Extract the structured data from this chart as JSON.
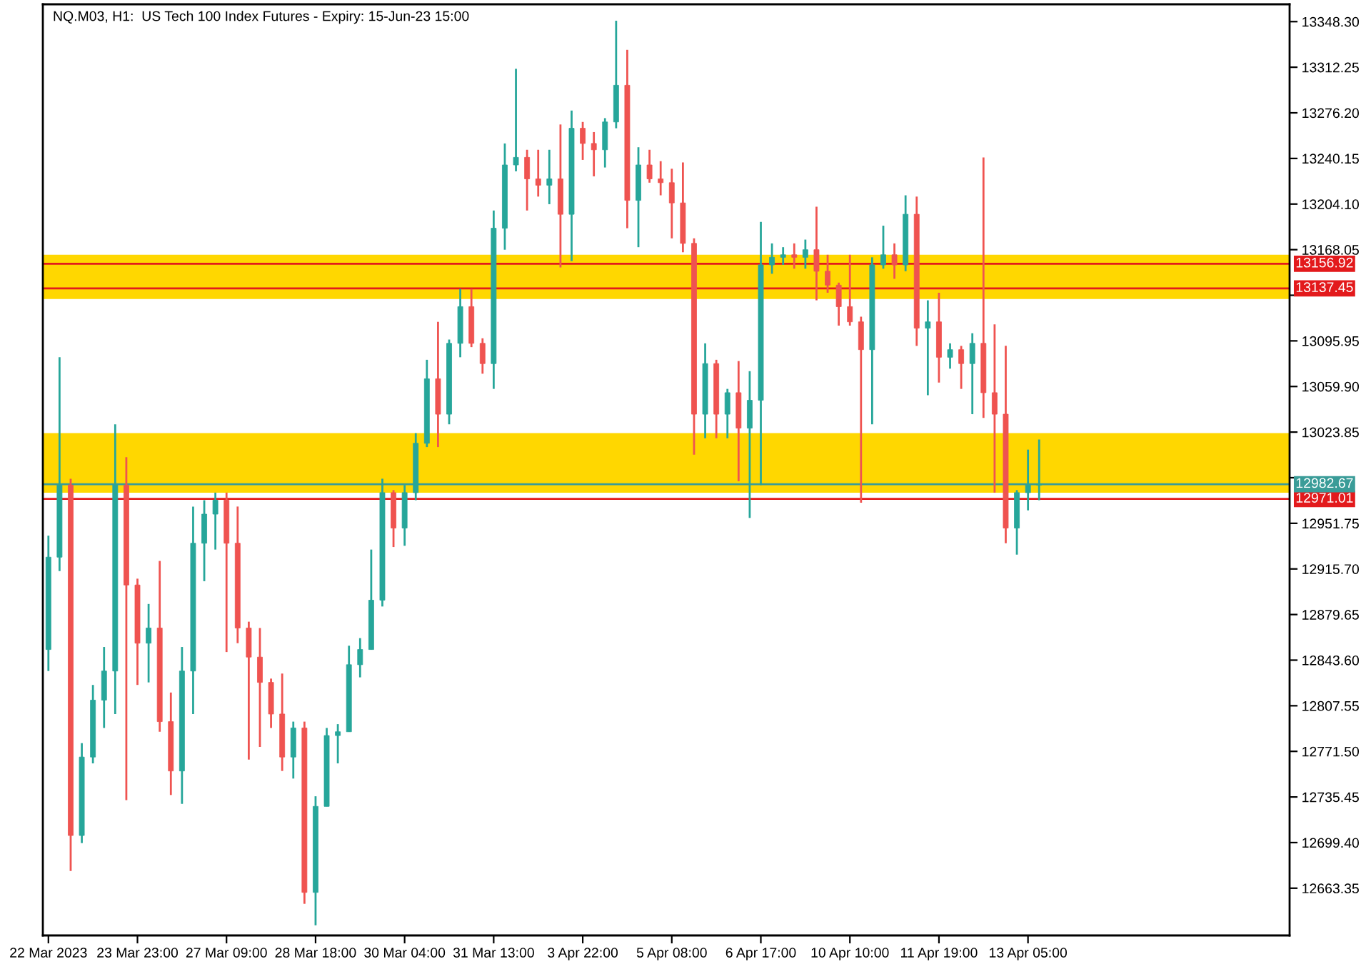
{
  "chart_data": {
    "type": "candlestick",
    "title": "NQ.M03, H1:  US Tech 100 Index Futures - Expiry: 15-Jun-23 15:00",
    "categories": [
      "22 Mar 2023",
      null,
      null,
      null,
      null,
      null,
      null,
      null,
      "23 Mar 23:00",
      null,
      null,
      null,
      null,
      null,
      null,
      null,
      "27 Mar 09:00",
      null,
      null,
      null,
      null,
      null,
      null,
      null,
      "28 Mar 18:00",
      null,
      null,
      null,
      null,
      null,
      null,
      null,
      "30 Mar 04:00",
      null,
      null,
      null,
      null,
      null,
      null,
      null,
      "31 Mar 13:00",
      null,
      null,
      null,
      null,
      null,
      null,
      null,
      "3 Apr 22:00",
      null,
      null,
      null,
      null,
      null,
      null,
      null,
      "5 Apr 08:00",
      null,
      null,
      null,
      null,
      null,
      null,
      null,
      "6 Apr 17:00",
      null,
      null,
      null,
      null,
      null,
      null,
      null,
      "10 Apr 10:00",
      null,
      null,
      null,
      null,
      null,
      null,
      null,
      "11 Apr 19:00",
      null,
      null,
      null,
      null,
      null,
      null,
      null,
      "13 Apr 05:00",
      null,
      null,
      null,
      null,
      null,
      null,
      null,
      null,
      null,
      null,
      null,
      null,
      null,
      null,
      null,
      null,
      null,
      null,
      null,
      null,
      null,
      null,
      null
    ],
    "ohlc": [
      [
        12852,
        12942,
        12835,
        12925
      ],
      [
        12925,
        13083,
        12914,
        12982
      ],
      [
        12982,
        12987,
        12677,
        12705
      ],
      [
        12705,
        12778,
        12699,
        12767
      ],
      [
        12767,
        12824,
        12762,
        12812
      ],
      [
        12812,
        12854,
        12790,
        12835
      ],
      [
        12835,
        13030,
        12801,
        12982
      ],
      [
        12982,
        13004,
        12733,
        12903
      ],
      [
        12903,
        12908,
        12824,
        12857
      ],
      [
        12857,
        12888,
        12826,
        12869
      ],
      [
        12869,
        12922,
        12787,
        12795
      ],
      [
        12795,
        12818,
        12737,
        12756
      ],
      [
        12756,
        12854,
        12730,
        12835
      ],
      [
        12835,
        12965,
        12801,
        12936
      ],
      [
        12936,
        12970,
        12906,
        12959
      ],
      [
        12959,
        12976,
        12931,
        12970
      ],
      [
        12970,
        12976,
        12850,
        12936
      ],
      [
        12936,
        12965,
        12857,
        12869
      ],
      [
        12869,
        12874,
        12765,
        12846
      ],
      [
        12846,
        12869,
        12775,
        12826
      ],
      [
        12826,
        12829,
        12790,
        12801
      ],
      [
        12801,
        12833,
        12756,
        12767
      ],
      [
        12767,
        12795,
        12750,
        12790
      ],
      [
        12790,
        12795,
        12651,
        12660
      ],
      [
        12660,
        12736,
        12634,
        12728
      ],
      [
        12728,
        12790,
        12728,
        12784
      ],
      [
        12784,
        12793,
        12762,
        12787
      ],
      [
        12787,
        12855,
        12787,
        12840
      ],
      [
        12840,
        12861,
        12830,
        12852
      ],
      [
        12852,
        12931,
        12852,
        12891
      ],
      [
        12891,
        12987,
        12886,
        12976
      ],
      [
        12976,
        12978,
        12933,
        12948
      ],
      [
        12948,
        12982,
        12934,
        12976
      ],
      [
        12976,
        13023,
        12970,
        13015
      ],
      [
        13015,
        13081,
        13012,
        13066
      ],
      [
        13066,
        13111,
        13012,
        13038
      ],
      [
        13038,
        13097,
        13030,
        13094
      ],
      [
        13094,
        13137,
        13083,
        13123
      ],
      [
        13123,
        13137,
        13091,
        13094
      ],
      [
        13094,
        13098,
        13070,
        13078
      ],
      [
        13078,
        13199,
        13058,
        13185
      ],
      [
        13185,
        13252,
        13168,
        13235
      ],
      [
        13235,
        13311,
        13230,
        13241
      ],
      [
        13241,
        13247,
        13199,
        13224
      ],
      [
        13224,
        13247,
        13210,
        13219
      ],
      [
        13219,
        13247,
        13204,
        13224
      ],
      [
        13224,
        13267,
        13154,
        13196
      ],
      [
        13196,
        13278,
        13159,
        13264
      ],
      [
        13264,
        13269,
        13239,
        13252
      ],
      [
        13252,
        13261,
        13226,
        13247
      ],
      [
        13247,
        13272,
        13233,
        13269
      ],
      [
        13269,
        13349,
        13264,
        13298
      ],
      [
        13298,
        13326,
        13185,
        13207
      ],
      [
        13207,
        13249,
        13170,
        13235
      ],
      [
        13235,
        13247,
        13221,
        13224
      ],
      [
        13224,
        13238,
        13211,
        13221
      ],
      [
        13221,
        13232,
        13177,
        13205
      ],
      [
        13205,
        13237,
        13166,
        13173
      ],
      [
        13173,
        13177,
        13006,
        13038
      ],
      [
        13038,
        13094,
        13019,
        13078
      ],
      [
        13078,
        13081,
        13019,
        13038
      ],
      [
        13038,
        13058,
        13019,
        13055
      ],
      [
        13055,
        13080,
        12985,
        13027
      ],
      [
        13027,
        13072,
        12956,
        13049
      ],
      [
        13049,
        13190,
        12982,
        13156
      ],
      [
        13156,
        13173,
        13149,
        13162
      ],
      [
        13162,
        13170,
        13156,
        13164
      ],
      [
        13164,
        13173,
        13153,
        13162
      ],
      [
        13162,
        13176,
        13153,
        13168
      ],
      [
        13168,
        13202,
        13128,
        13151
      ],
      [
        13151,
        13164,
        13134,
        13140
      ],
      [
        13140,
        13142,
        13108,
        13123
      ],
      [
        13123,
        13164,
        13108,
        13111
      ],
      [
        13111,
        13115,
        12968,
        13089
      ],
      [
        13089,
        13162,
        13030,
        13156
      ],
      [
        13156,
        13187,
        13153,
        13164
      ],
      [
        13164,
        13173,
        13145,
        13156
      ],
      [
        13156,
        13211,
        13151,
        13196
      ],
      [
        13196,
        13210,
        13092,
        13106
      ],
      [
        13106,
        13128,
        13053,
        13111
      ],
      [
        13111,
        13134,
        13063,
        13083
      ],
      [
        13083,
        13094,
        13074,
        13089
      ],
      [
        13089,
        13092,
        13058,
        13078
      ],
      [
        13078,
        13102,
        13038,
        13094
      ],
      [
        13094,
        13241,
        13035,
        13055
      ],
      [
        13055,
        13109,
        12976,
        13038
      ],
      [
        13038,
        13092,
        12936,
        12948
      ],
      [
        12948,
        12978,
        12927,
        12976
      ],
      [
        12976,
        13010,
        12962,
        12982
      ],
      [
        12982,
        13018,
        12970,
        12982.67
      ],
      null,
      null,
      null,
      null,
      null,
      null,
      null,
      null,
      null,
      null,
      null,
      null,
      null,
      null,
      null,
      null,
      null,
      null,
      null,
      null,
      null,
      null
    ],
    "ylim": [
      12626,
      13362
    ],
    "yticks": [
      {
        "value": 13348.3,
        "label": "13348.30"
      },
      {
        "value": 13312.25,
        "label": "13312.25"
      },
      {
        "value": 13276.2,
        "label": "13276.20"
      },
      {
        "value": 13240.15,
        "label": "13240.15"
      },
      {
        "value": 13204.1,
        "label": "13204.10"
      },
      {
        "value": 13168.05,
        "label": "13168.05"
      },
      {
        "value": 13132.0,
        "label": null
      },
      {
        "value": 13095.95,
        "label": "13095.95"
      },
      {
        "value": 13059.9,
        "label": "13059.90"
      },
      {
        "value": 13023.85,
        "label": "13023.85"
      },
      {
        "value": 12987.8,
        "label": null
      },
      {
        "value": 12951.75,
        "label": "12951.75"
      },
      {
        "value": 12915.7,
        "label": "12915.70"
      },
      {
        "value": 12879.65,
        "label": "12879.65"
      },
      {
        "value": 12843.6,
        "label": "12843.60"
      },
      {
        "value": 12807.55,
        "label": "12807.55"
      },
      {
        "value": 12771.5,
        "label": "12771.50"
      },
      {
        "value": 12735.45,
        "label": "12735.45"
      },
      {
        "value": 12699.4,
        "label": "12699.40"
      },
      {
        "value": 12663.35,
        "label": "12663.35"
      }
    ],
    "ref_lines": [
      {
        "axis": "y",
        "value": 13156.92,
        "label": "13156.92",
        "color": "#e31a1c"
      },
      {
        "axis": "y",
        "value": 13137.45,
        "label": "13137.45",
        "color": "#e31a1c"
      },
      {
        "axis": "y",
        "value": 12971.01,
        "label": "12971.01",
        "color": "#e31a1c"
      },
      {
        "axis": "y",
        "value": 12982.67,
        "label": "12982.67",
        "color": "#3a9c98"
      }
    ],
    "bands": [
      {
        "axis": "y",
        "from": 12976,
        "to": 13023,
        "color": "#ffd700"
      },
      {
        "axis": "y",
        "from": 13129,
        "to": 13164,
        "color": "#ffd700"
      }
    ],
    "grid": false,
    "legend": false
  }
}
